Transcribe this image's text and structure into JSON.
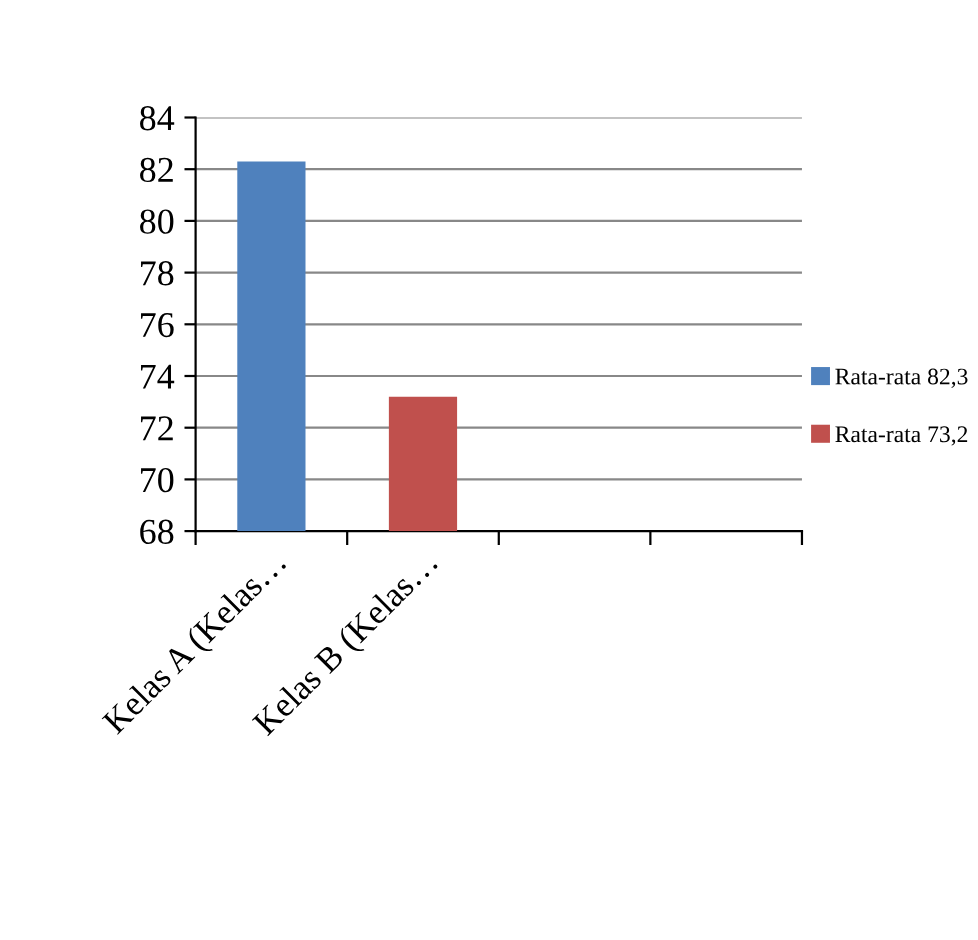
{
  "chart_data": {
    "type": "bar",
    "categories": [
      "Kelas A (Kelas…",
      "Kelas B (Kelas…",
      null,
      null
    ],
    "series": [
      {
        "name": "Rata-rata 82,3",
        "color": "#4f81bd",
        "values": [
          82.3,
          null,
          null,
          null
        ]
      },
      {
        "name": "Rata-rata 73,2",
        "color": "#c0504d",
        "values": [
          null,
          73.2,
          null,
          null
        ]
      }
    ],
    "ylim": [
      68,
      84
    ],
    "yticks": [
      68,
      70,
      72,
      74,
      76,
      78,
      80,
      82,
      84
    ],
    "grid": "y",
    "legend": "right"
  }
}
